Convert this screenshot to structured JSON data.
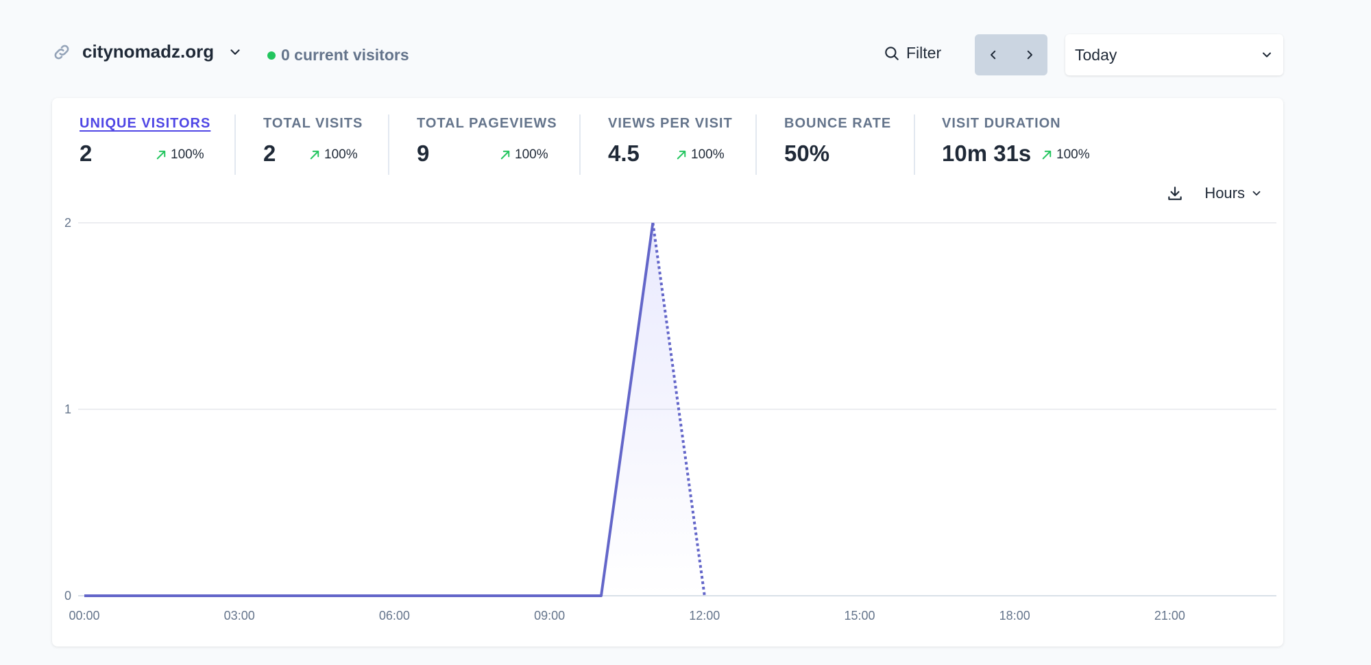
{
  "site": {
    "domain": "citynomadz.org",
    "current_visitors": "0 current visitors"
  },
  "toolbar": {
    "filter_label": "Filter",
    "period_label": "Today"
  },
  "metrics": [
    {
      "label": "UNIQUE VISITORS",
      "value": "2",
      "change": "100%",
      "active": true
    },
    {
      "label": "TOTAL VISITS",
      "value": "2",
      "change": "100%"
    },
    {
      "label": "TOTAL PAGEVIEWS",
      "value": "9",
      "change": "100%"
    },
    {
      "label": "VIEWS PER VISIT",
      "value": "4.5",
      "change": "100%"
    },
    {
      "label": "BOUNCE RATE",
      "value": "50%"
    },
    {
      "label": "VISIT DURATION",
      "value": "10m 31s",
      "change": "100%"
    }
  ],
  "chart_controls": {
    "interval_label": "Hours"
  },
  "colors": {
    "accent": "#4f46e5",
    "line": "#6366c9",
    "positive": "#22c55e",
    "live_dot": "#22c55e"
  },
  "chart_data": {
    "type": "line",
    "x_ticks": [
      "00:00",
      "03:00",
      "06:00",
      "09:00",
      "12:00",
      "15:00",
      "18:00",
      "21:00"
    ],
    "y_ticks": [
      "0",
      "1",
      "2"
    ],
    "ylim": [
      0,
      2
    ],
    "x_hours": [
      0,
      1,
      2,
      3,
      4,
      5,
      6,
      7,
      8,
      9,
      10,
      11,
      12
    ],
    "series": [
      {
        "values": [
          0,
          0,
          0,
          0,
          0,
          0,
          0,
          0,
          0,
          0,
          0,
          2,
          0
        ],
        "dashed_from_hour": 11
      }
    ],
    "grid": true
  }
}
